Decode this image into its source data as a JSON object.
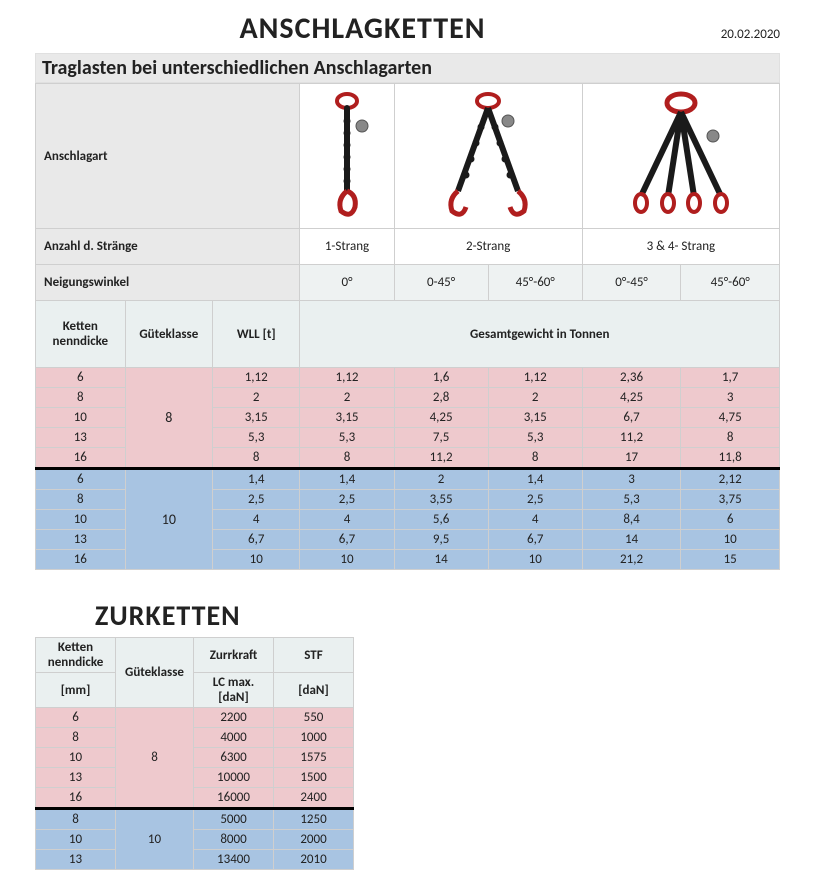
{
  "header": {
    "title": "ANSCHLAGKETTEN",
    "date": "20.02.2020"
  },
  "table1": {
    "subtitle": "Traglasten bei unterschiedlichen Anschlagarten",
    "row_labels": {
      "anschlagart": "Anschlagart",
      "anzahl": "Anzahl d. Stränge",
      "neigung": "Neigungswinkel"
    },
    "strands": [
      "1-Strang",
      "2-Strang",
      "3 & 4- Strang"
    ],
    "angles": [
      "0°",
      "0-45°",
      "45°-60°",
      "0°-45°",
      "45°-60°"
    ],
    "col_headers": {
      "ketten": "Ketten nenndicke",
      "gute": "Güteklasse",
      "wll": "WLL [t]",
      "gesamt": "Gesamtgewicht in Tonnen"
    },
    "class8": {
      "label": "8",
      "rows": [
        {
          "k": "6",
          "v": [
            "1,12",
            "1,12",
            "1,6",
            "1,12",
            "2,36",
            "1,7"
          ]
        },
        {
          "k": "8",
          "v": [
            "2",
            "2",
            "2,8",
            "2",
            "4,25",
            "3"
          ]
        },
        {
          "k": "10",
          "v": [
            "3,15",
            "3,15",
            "4,25",
            "3,15",
            "6,7",
            "4,75"
          ]
        },
        {
          "k": "13",
          "v": [
            "5,3",
            "5,3",
            "7,5",
            "5,3",
            "11,2",
            "8"
          ]
        },
        {
          "k": "16",
          "v": [
            "8",
            "8",
            "11,2",
            "8",
            "17",
            "11,8"
          ]
        }
      ]
    },
    "class10": {
      "label": "10",
      "rows": [
        {
          "k": "6",
          "v": [
            "1,4",
            "1,4",
            "2",
            "1,4",
            "3",
            "2,12"
          ]
        },
        {
          "k": "8",
          "v": [
            "2,5",
            "2,5",
            "3,55",
            "2,5",
            "5,3",
            "3,75"
          ]
        },
        {
          "k": "10",
          "v": [
            "4",
            "4",
            "5,6",
            "4",
            "8,4",
            "6"
          ]
        },
        {
          "k": "13",
          "v": [
            "6,7",
            "6,7",
            "9,5",
            "6,7",
            "14",
            "10"
          ]
        },
        {
          "k": "16",
          "v": [
            "10",
            "10",
            "14",
            "10",
            "21,2",
            "15"
          ]
        }
      ]
    }
  },
  "table2": {
    "title": "ZURKETTEN",
    "headers": {
      "ketten": "Ketten nenndicke",
      "mm": "[mm]",
      "gute": "Güteklasse",
      "zurr": "Zurrkraft",
      "lc": "LC max. [daN]",
      "stf": "STF",
      "dan": "[daN]"
    },
    "class8": {
      "label": "8",
      "rows": [
        {
          "k": "6",
          "lc": "2200",
          "stf": "550"
        },
        {
          "k": "8",
          "lc": "4000",
          "stf": "1000"
        },
        {
          "k": "10",
          "lc": "6300",
          "stf": "1575"
        },
        {
          "k": "13",
          "lc": "10000",
          "stf": "1500"
        },
        {
          "k": "16",
          "lc": "16000",
          "stf": "2400"
        }
      ]
    },
    "class10": {
      "label": "10",
      "rows": [
        {
          "k": "8",
          "lc": "5000",
          "stf": "1250"
        },
        {
          "k": "10",
          "lc": "8000",
          "stf": "2000"
        },
        {
          "k": "13",
          "lc": "13400",
          "stf": "2010"
        }
      ]
    }
  },
  "colors": {
    "pink": "#eec9cd",
    "blue": "#a8c4e2",
    "header_bg": "#eaf0f0",
    "grey": "#e9e9e9",
    "chain_red": "#b01e1e",
    "chain_black": "#1a1a1a"
  }
}
